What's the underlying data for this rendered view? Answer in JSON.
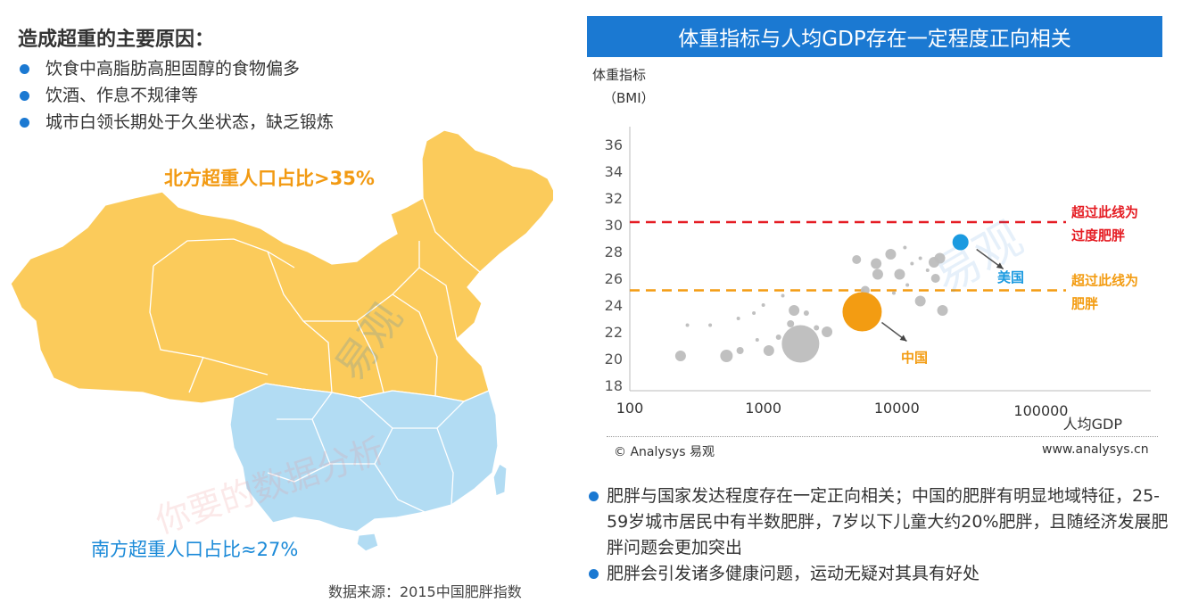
{
  "left": {
    "title": "造成超重的主要原因：",
    "bullets": [
      "饮食中高脂肪高胆固醇的食物偏多",
      "饮酒、作息不规律等",
      "城市白领长期处于久坐状态，缺乏锻炼"
    ],
    "north_label": "北方超重人口占比>35%",
    "south_label": "南方超重人口占比≈27%",
    "source": "数据来源：2015中国肥胖指数",
    "watermark_texts": [
      "易观",
      "你要的数据分析"
    ]
  },
  "right": {
    "header": "体重指标与人均GDP存在一定程度正向相关",
    "copyright": "© Analysys 易观",
    "website": "www.analysys.cn",
    "bullets": [
      "肥胖与国家发达程度存在一定正向相关；中国的肥胖有明显地域特征，25-59岁城市居民中有半数肥胖，7岁以下儿童大约20%肥胖，且随经济发展肥胖问题会更加突出",
      "肥胖会引发诸多健康问题，运动无疑对其具有好处"
    ]
  },
  "colors": {
    "north": "#fbcb5b",
    "south": "#b2dcf3",
    "accent_blue": "#1b79d2",
    "china": "#f39c12",
    "usa": "#1b9ae0",
    "overweight_line": "#f39c12",
    "obese_line": "#e51c23",
    "other_countries": "#bdbdbd"
  },
  "chart_data": {
    "type": "scatter",
    "ylabel_line1": "体重指标",
    "ylabel_line2": "（BMI）",
    "xlabel": "人均GDP",
    "x_scale": "log",
    "xlim": [
      100,
      200000
    ],
    "ylim": [
      18,
      36
    ],
    "yticks": [
      "18",
      "20",
      "22",
      "24",
      "26",
      "28",
      "30",
      "32",
      "34",
      "36"
    ],
    "xticks": [
      "100",
      "1000",
      "10000",
      "100000"
    ],
    "reference_lines": [
      {
        "y": 30.2,
        "label_line1": "超过此线为",
        "label_line2": "过度肥胖",
        "color": "#e51c23"
      },
      {
        "y": 25.1,
        "label_line1": "超过此线为",
        "label_line2": "肥胖",
        "color": "#f39c12"
      }
    ],
    "highlight": [
      {
        "name": "中国",
        "x": 5500,
        "y": 23.5,
        "size": 22,
        "color": "#f39c12"
      },
      {
        "name": "美国",
        "x": 30000,
        "y": 28.7,
        "size": 9,
        "color": "#1b9ae0"
      }
    ],
    "points": [
      {
        "x": 1900,
        "y": 21.1,
        "size": 21
      },
      {
        "x": 240,
        "y": 20.2,
        "size": 6
      },
      {
        "x": 530,
        "y": 20.2,
        "size": 7
      },
      {
        "x": 670,
        "y": 20.6,
        "size": 4
      },
      {
        "x": 1100,
        "y": 20.6,
        "size": 6
      },
      {
        "x": 1300,
        "y": 21.6,
        "size": 3
      },
      {
        "x": 1600,
        "y": 22.6,
        "size": 4
      },
      {
        "x": 2500,
        "y": 22.3,
        "size": 3
      },
      {
        "x": 3000,
        "y": 22.0,
        "size": 6
      },
      {
        "x": 2100,
        "y": 23.4,
        "size": 3
      },
      {
        "x": 1700,
        "y": 23.6,
        "size": 6
      },
      {
        "x": 270,
        "y": 22.5,
        "size": 2
      },
      {
        "x": 400,
        "y": 22.5,
        "size": 2
      },
      {
        "x": 650,
        "y": 23.0,
        "size": 2
      },
      {
        "x": 850,
        "y": 23.4,
        "size": 2
      },
      {
        "x": 1000,
        "y": 24.0,
        "size": 2
      },
      {
        "x": 1400,
        "y": 24.7,
        "size": 2
      },
      {
        "x": 900,
        "y": 21.4,
        "size": 2
      },
      {
        "x": 5000,
        "y": 27.4,
        "size": 5
      },
      {
        "x": 7000,
        "y": 27.1,
        "size": 6
      },
      {
        "x": 7200,
        "y": 26.3,
        "size": 6
      },
      {
        "x": 9000,
        "y": 27.8,
        "size": 6
      },
      {
        "x": 10500,
        "y": 26.3,
        "size": 6
      },
      {
        "x": 11500,
        "y": 28.3,
        "size": 2
      },
      {
        "x": 13000,
        "y": 27.1,
        "size": 2
      },
      {
        "x": 15000,
        "y": 27.5,
        "size": 2
      },
      {
        "x": 17000,
        "y": 26.6,
        "size": 2
      },
      {
        "x": 19000,
        "y": 27.2,
        "size": 6
      },
      {
        "x": 21000,
        "y": 27.5,
        "size": 6
      },
      {
        "x": 19500,
        "y": 26.0,
        "size": 5
      },
      {
        "x": 15000,
        "y": 24.3,
        "size": 6
      },
      {
        "x": 22000,
        "y": 23.6,
        "size": 6
      },
      {
        "x": 12000,
        "y": 25.5,
        "size": 2
      },
      {
        "x": 9500,
        "y": 24.9,
        "size": 2
      },
      {
        "x": 5800,
        "y": 25.1,
        "size": 5
      }
    ]
  }
}
